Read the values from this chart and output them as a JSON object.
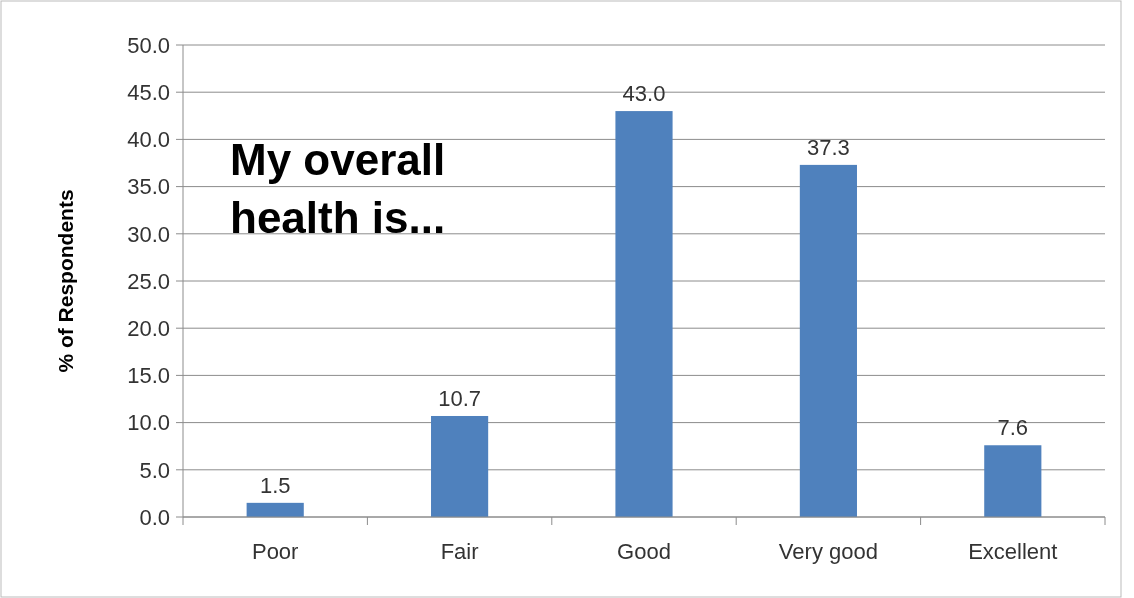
{
  "chart_data": {
    "type": "bar",
    "title": "My overall health is...",
    "ylabel": "% of Respondents",
    "categories": [
      "Poor",
      "Fair",
      "Good",
      "Very good",
      "Excellent"
    ],
    "values": [
      1.5,
      10.7,
      43.0,
      37.3,
      7.6
    ],
    "color": "#4f81bd",
    "value_labels": [
      "1.5",
      "10.7",
      "43.0",
      "37.3",
      "7.6"
    ],
    "ylim": [
      0,
      50
    ],
    "yticks": [
      {
        "value": 0,
        "label": "0.0"
      },
      {
        "value": 5,
        "label": "5.0"
      },
      {
        "value": 10,
        "label": "10.0"
      },
      {
        "value": 15,
        "label": "15.0"
      },
      {
        "value": 20,
        "label": "20.0"
      },
      {
        "value": 25,
        "label": "25.0"
      },
      {
        "value": 30,
        "label": "30.0"
      },
      {
        "value": 35,
        "label": "35.0"
      },
      {
        "value": 40,
        "label": "40.0"
      },
      {
        "value": 45,
        "label": "45.0"
      },
      {
        "value": 50,
        "label": "50.0"
      }
    ],
    "grid": "y"
  }
}
